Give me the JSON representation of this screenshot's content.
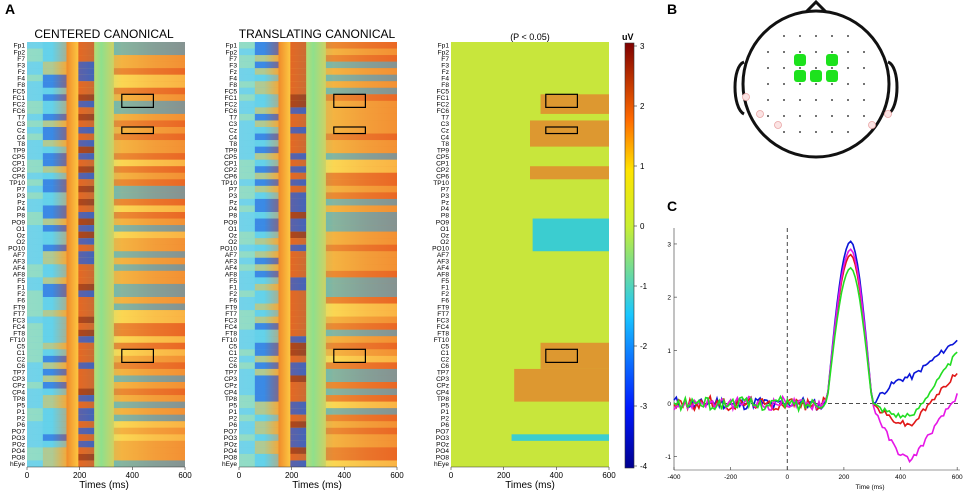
{
  "panels": {
    "a": {
      "letter": "A"
    },
    "b": {
      "letter": "B"
    },
    "c": {
      "letter": "C"
    }
  },
  "colors": {
    "pos_fill": "#ffd200",
    "neg_fill": "#1aa9d8",
    "ppt_fill": "#e08a2e",
    "ppt_neg_fill": "#22c8ea",
    "significance_bg": "#c8e63c",
    "head_electrode_highlight": "#1de21d"
  },
  "chart_data": [
    {
      "type": "heatmap",
      "title": "CENTERED CANONICAL",
      "xlabel": "Times (ms)",
      "xlim": [
        0,
        600
      ],
      "xticks": [
        0,
        200,
        400,
        600
      ],
      "channels": [
        "Fp1",
        "Fp2",
        "F7",
        "F3",
        "Fz",
        "F4",
        "F8",
        "FC5",
        "FC1",
        "FC2",
        "FC6",
        "T7",
        "C3",
        "Cz",
        "C4",
        "T8",
        "TP9",
        "CP5",
        "CP1",
        "CP2",
        "CP6",
        "TP10",
        "P7",
        "P3",
        "Pz",
        "P4",
        "P8",
        "PO9",
        "O1",
        "Oz",
        "O2",
        "PO10",
        "AF7",
        "AF3",
        "AF4",
        "AF8",
        "F5",
        "F1",
        "F2",
        "F6",
        "FT9",
        "FT7",
        "FC3",
        "FC4",
        "FT8",
        "FT10",
        "C5",
        "C1",
        "C2",
        "C6",
        "TP7",
        "CP3",
        "CPz",
        "CP4",
        "TP8",
        "P5",
        "P1",
        "P2",
        "P6",
        "PO7",
        "PO3",
        "POz",
        "PO4",
        "PO8",
        "hEye"
      ],
      "highlight_boxes": [
        {
          "channels": [
            "FC1",
            "FC2"
          ],
          "time_range_ms": [
            360,
            480
          ]
        },
        {
          "channels": [
            "Cz"
          ],
          "time_range_ms": [
            360,
            480
          ]
        },
        {
          "channels": [
            "C1",
            "C2"
          ],
          "time_range_ms": [
            360,
            480
          ]
        }
      ]
    },
    {
      "type": "heatmap",
      "title": "TRANSLATING CANONICAL",
      "xlabel": "Times (ms)",
      "xlim": [
        0,
        600
      ],
      "xticks": [
        0,
        200,
        400,
        600
      ],
      "highlight_boxes": [
        {
          "channels": [
            "FC1",
            "FC2"
          ],
          "time_range_ms": [
            360,
            480
          ]
        },
        {
          "channels": [
            "Cz"
          ],
          "time_range_ms": [
            360,
            480
          ]
        },
        {
          "channels": [
            "C1",
            "C2"
          ],
          "time_range_ms": [
            360,
            480
          ]
        }
      ]
    },
    {
      "type": "heatmap",
      "title": "(P < 0.05)",
      "xlabel": "Times (ms)",
      "xlim": [
        0,
        600
      ],
      "xticks": [
        0,
        200,
        400,
        600
      ],
      "colorbar": {
        "label": "uV",
        "range": [
          -4,
          3
        ],
        "ticks": [
          3,
          2,
          1,
          0,
          -1,
          -2,
          -3,
          -4
        ]
      },
      "significant_regions": [
        {
          "channels": [
            "FC1",
            "FC2",
            "FC6"
          ],
          "time_range_ms": [
            340,
            600
          ],
          "sign": "positive"
        },
        {
          "channels": [
            "C3",
            "Cz",
            "C4",
            "T8"
          ],
          "time_range_ms": [
            300,
            600
          ],
          "sign": "positive"
        },
        {
          "channels": [
            "CP2",
            "CP6"
          ],
          "time_range_ms": [
            300,
            600
          ],
          "sign": "positive"
        },
        {
          "channels": [
            "PO9",
            "O1",
            "Oz",
            "O2",
            "PO10"
          ],
          "time_range_ms": [
            310,
            600
          ],
          "sign": "negative"
        },
        {
          "channels": [
            "C5",
            "C1",
            "C2",
            "C6"
          ],
          "time_range_ms": [
            340,
            600
          ],
          "sign": "positive"
        },
        {
          "channels": [
            "TP7",
            "CP3",
            "CPz",
            "CP4",
            "TP8"
          ],
          "time_range_ms": [
            240,
            600
          ],
          "sign": "positive"
        },
        {
          "channels": [
            "PO3"
          ],
          "time_range_ms": [
            230,
            600
          ],
          "sign": "negative"
        }
      ],
      "highlight_boxes": [
        {
          "channels": [
            "FC1",
            "FC2"
          ],
          "time_range_ms": [
            360,
            480
          ]
        },
        {
          "channels": [
            "Cz"
          ],
          "time_range_ms": [
            360,
            480
          ]
        },
        {
          "channels": [
            "C1",
            "C2"
          ],
          "time_range_ms": [
            360,
            480
          ]
        }
      ]
    },
    {
      "type": "line",
      "title": "",
      "xlabel": "Time (ms)",
      "xlim": [
        -400,
        610
      ],
      "ylim": [
        -1.25,
        3.3
      ],
      "xticks": [
        -400,
        -200,
        0,
        200,
        400,
        600
      ],
      "yticks": [
        -1,
        0,
        1,
        2,
        3
      ],
      "series": [
        {
          "name": "blue",
          "color": "#0a14d8",
          "peak": 3.05,
          "peak_ms": 225,
          "end_value": 1.2
        },
        {
          "name": "red",
          "color": "#e01818",
          "peak": 2.8,
          "peak_ms": 225,
          "end_value": 0.6
        },
        {
          "name": "magenta",
          "color": "#e617e6",
          "peak": 2.9,
          "peak_ms": 225,
          "end_value": 0.15
        },
        {
          "name": "green",
          "color": "#22dd22",
          "peak": 2.55,
          "peak_ms": 225,
          "end_value": 0.95
        }
      ]
    }
  ]
}
